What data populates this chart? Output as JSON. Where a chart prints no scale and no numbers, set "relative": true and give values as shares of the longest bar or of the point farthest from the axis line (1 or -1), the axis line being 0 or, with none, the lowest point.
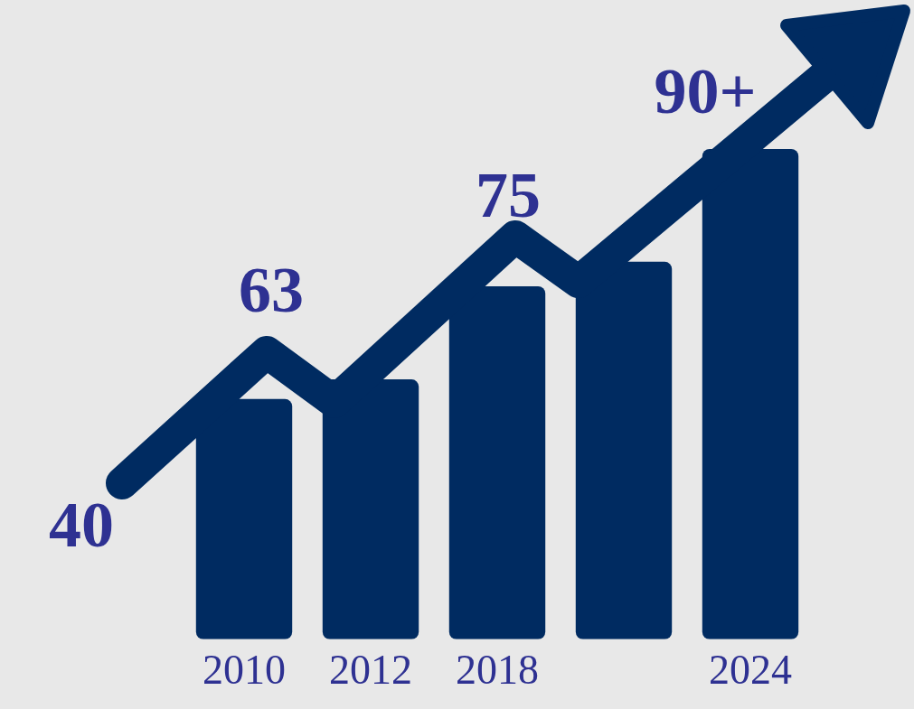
{
  "chart_data": {
    "type": "bar",
    "relative": true,
    "categories": [
      "2010",
      "2012",
      "2018",
      null,
      "2024"
    ],
    "values": [
      0.49,
      0.53,
      0.72,
      0.77,
      1
    ],
    "color": "#002b61",
    "annotations": [
      "40",
      "63",
      "75",
      "90+"
    ]
  }
}
